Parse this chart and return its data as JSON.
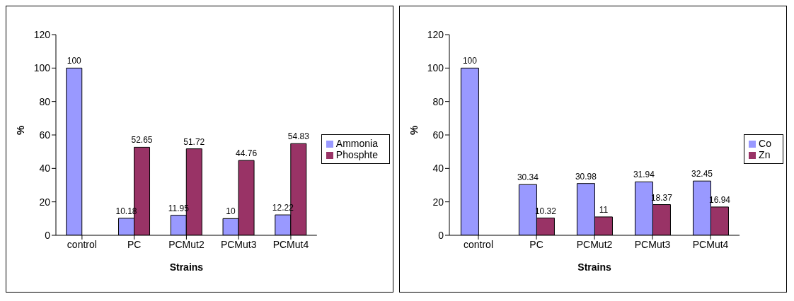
{
  "chart_data": [
    {
      "type": "bar",
      "xlabel": "Strains",
      "ylabel": "%",
      "categories": [
        "control",
        "PC",
        "PCMut2",
        "PCMut3",
        "PCMut4"
      ],
      "series": [
        {
          "name": "Ammonia",
          "color": "#9999ff",
          "values": [
            100,
            10.18,
            11.95,
            10,
            12.22
          ]
        },
        {
          "name": "Phosphte",
          "color": "#993366",
          "values": [
            null,
            52.65,
            51.72,
            44.76,
            54.83
          ]
        }
      ],
      "ylim": [
        0,
        120
      ],
      "yticks": [
        0,
        20,
        40,
        60,
        80,
        100,
        120
      ],
      "grid": false,
      "legend": "right",
      "data_labels": true
    },
    {
      "type": "bar",
      "xlabel": "Strains",
      "ylabel": "%",
      "categories": [
        "control",
        "PC",
        "PCMut2",
        "PCMut3",
        "PCMut4"
      ],
      "series": [
        {
          "name": "Co",
          "color": "#9999ff",
          "values": [
            100,
            30.34,
            30.98,
            31.94,
            32.45
          ]
        },
        {
          "name": "Zn",
          "color": "#993366",
          "values": [
            null,
            10.32,
            11,
            18.37,
            16.94
          ]
        }
      ],
      "ylim": [
        0,
        120
      ],
      "yticks": [
        0,
        20,
        40,
        60,
        80,
        100,
        120
      ],
      "grid": false,
      "legend": "right",
      "data_labels": true
    }
  ]
}
